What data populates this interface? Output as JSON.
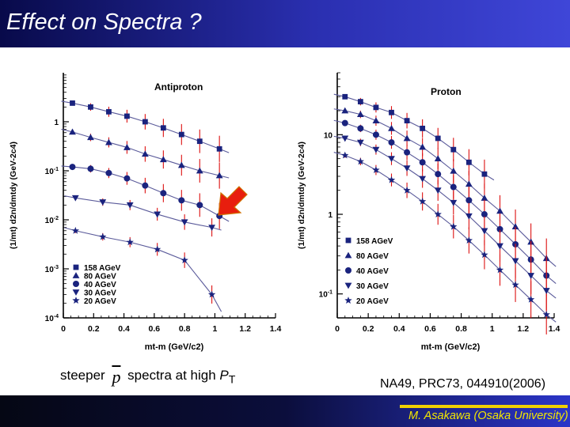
{
  "slide": {
    "title": "Effect on Spectra ?",
    "caption_before": "steeper",
    "caption_symbol": "p",
    "caption_after": "spectra at high ",
    "caption_pt": "P",
    "caption_pt_sub": "T",
    "citation": "NA49, PRC73, 044910(2006)",
    "footer": "M. Asakawa (Osaka University)",
    "colors": {
      "header": "#2a2fb0",
      "footer_text": "#f2e600",
      "marker": "#1a237e",
      "fit_line": "#5a5a9a",
      "arrow": "#e81e0e"
    }
  },
  "chart_data": [
    {
      "type": "scatter",
      "title": "Antiproton",
      "xlabel": "mt-m (GeV/c2)",
      "ylabel": "(1/mt) d2n/dmtdy (GeV-2c4)",
      "xlim": [
        0,
        1.4
      ],
      "ylim": [
        0.0001,
        10
      ],
      "yscale": "log",
      "xticks": [
        "0",
        "0.2",
        "0.4",
        "0.6",
        "0.8",
        "1",
        "1.2",
        "1.4"
      ],
      "yticks": [
        "10-4",
        "10-3",
        "10-2",
        "10-1",
        "1"
      ],
      "legend_position": "bottom-left",
      "annotation": "red arrow pointing to 30 AGeV spectrum near mt-m = 1.1",
      "series": [
        {
          "name": "158 AGeV",
          "marker": "square",
          "x": [
            0.06,
            0.18,
            0.3,
            0.42,
            0.54,
            0.66,
            0.78,
            0.9,
            1.03
          ],
          "y": [
            2.4,
            2.0,
            1.6,
            1.3,
            1.0,
            0.75,
            0.55,
            0.4,
            0.28
          ]
        },
        {
          "name": "80 AGeV",
          "marker": "triangle",
          "x": [
            0.06,
            0.18,
            0.3,
            0.42,
            0.54,
            0.66,
            0.78,
            0.9,
            1.03
          ],
          "y": [
            0.62,
            0.48,
            0.38,
            0.3,
            0.22,
            0.17,
            0.13,
            0.1,
            0.08
          ]
        },
        {
          "name": "40 AGeV",
          "marker": "circle",
          "x": [
            0.06,
            0.18,
            0.3,
            0.42,
            0.54,
            0.66,
            0.78,
            0.9,
            1.03
          ],
          "y": [
            0.12,
            0.11,
            0.09,
            0.07,
            0.05,
            0.035,
            0.025,
            0.02,
            0.012
          ]
        },
        {
          "name": "30 AGeV",
          "marker": "triangle-down",
          "x": [
            0.08,
            0.26,
            0.44,
            0.62,
            0.8,
            0.98
          ],
          "y": [
            0.028,
            0.023,
            0.02,
            0.013,
            0.009,
            0.007
          ]
        },
        {
          "name": "20 AGeV",
          "marker": "star",
          "x": [
            0.08,
            0.26,
            0.44,
            0.62,
            0.8,
            0.98
          ],
          "y": [
            0.006,
            0.0045,
            0.0035,
            0.0025,
            0.0015,
            0.0003
          ]
        }
      ]
    },
    {
      "type": "scatter",
      "title": "Proton",
      "xlabel": "mt-m (GeV/c2)",
      "ylabel": "(1/mt) d2n/dmtdy (GeV-2c4)",
      "xlim": [
        0,
        1.4
      ],
      "ylim": [
        0.05,
        60
      ],
      "yscale": "log",
      "xticks": [
        "0",
        "0.2",
        "0.4",
        "0.6",
        "0.8",
        "1",
        "1.2",
        "1.4"
      ],
      "yticks": [
        "10-1",
        "1",
        "10"
      ],
      "legend_position": "bottom-left",
      "series": [
        {
          "name": "158 AGeV",
          "marker": "square",
          "x": [
            0.05,
            0.15,
            0.25,
            0.35,
            0.45,
            0.55,
            0.65,
            0.75,
            0.85,
            0.95
          ],
          "y": [
            30,
            26,
            22,
            19,
            15,
            12,
            9,
            6.5,
            4.5,
            3.2
          ]
        },
        {
          "name": "80 AGeV",
          "marker": "triangle",
          "x": [
            0.05,
            0.15,
            0.25,
            0.35,
            0.45,
            0.55,
            0.65,
            0.75,
            0.85,
            0.95,
            1.05,
            1.15,
            1.25,
            1.35
          ],
          "y": [
            20,
            18,
            15,
            12,
            9,
            7,
            5,
            3.5,
            2.4,
            1.6,
            1.1,
            0.7,
            0.45,
            0.28
          ]
        },
        {
          "name": "40 AGeV",
          "marker": "circle",
          "x": [
            0.05,
            0.15,
            0.25,
            0.35,
            0.45,
            0.55,
            0.65,
            0.75,
            0.85,
            0.95,
            1.05,
            1.15,
            1.25,
            1.35
          ],
          "y": [
            14,
            12,
            10,
            8,
            6,
            4.5,
            3.2,
            2.2,
            1.5,
            1.0,
            0.65,
            0.42,
            0.27,
            0.17
          ]
        },
        {
          "name": "30 AGeV",
          "marker": "triangle-down",
          "x": [
            0.05,
            0.15,
            0.25,
            0.35,
            0.45,
            0.55,
            0.65,
            0.75,
            0.85,
            0.95,
            1.05,
            1.15,
            1.25,
            1.35
          ],
          "y": [
            9,
            8,
            6.5,
            5,
            3.8,
            2.8,
            2.0,
            1.4,
            0.95,
            0.62,
            0.4,
            0.26,
            0.17,
            0.11
          ]
        },
        {
          "name": "20 AGeV",
          "marker": "star",
          "x": [
            0.05,
            0.15,
            0.25,
            0.35,
            0.45,
            0.55,
            0.65,
            0.75,
            0.85,
            0.95,
            1.05,
            1.15,
            1.25,
            1.35
          ],
          "y": [
            5.5,
            4.6,
            3.6,
            2.7,
            2.0,
            1.45,
            1.0,
            0.7,
            0.47,
            0.31,
            0.2,
            0.13,
            0.085,
            0.055
          ]
        }
      ]
    }
  ]
}
